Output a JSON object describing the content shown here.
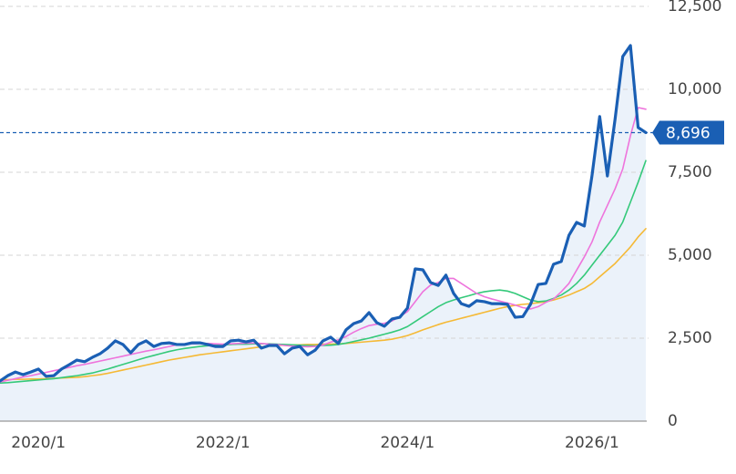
{
  "chart_data": {
    "type": "line",
    "categories": [
      null,
      null,
      null,
      null,
      null,
      "2020/1",
      null,
      null,
      null,
      null,
      null,
      null,
      null,
      null,
      null,
      null,
      null,
      null,
      null,
      null,
      null,
      null,
      null,
      null,
      null,
      null,
      null,
      null,
      null,
      "2022/1",
      null,
      null,
      null,
      null,
      null,
      null,
      null,
      null,
      null,
      null,
      null,
      null,
      null,
      null,
      null,
      null,
      null,
      null,
      null,
      null,
      null,
      null,
      null,
      "2024/1",
      null,
      null,
      null,
      null,
      null,
      null,
      null,
      null,
      null,
      null,
      null,
      null,
      null,
      null,
      null,
      null,
      null,
      null,
      null,
      null,
      null,
      null,
      null,
      "2026/1",
      null,
      null,
      null,
      null,
      null,
      null,
      null
    ],
    "series": [
      {
        "color": "#f5b935",
        "width": 1.6,
        "values": [
          1250,
          1250,
          1260,
          1260,
          1270,
          1270,
          1280,
          1290,
          1300,
          1310,
          1320,
          1340,
          1370,
          1400,
          1440,
          1490,
          1540,
          1590,
          1640,
          1690,
          1740,
          1790,
          1840,
          1880,
          1920,
          1960,
          2000,
          2030,
          2060,
          2090,
          2120,
          2150,
          2180,
          2210,
          2240,
          2260,
          2280,
          2290,
          2300,
          2300,
          2310,
          2310,
          2320,
          2320,
          2330,
          2340,
          2360,
          2380,
          2400,
          2420,
          2440,
          2470,
          2520,
          2580,
          2660,
          2750,
          2830,
          2910,
          2980,
          3040,
          3100,
          3160,
          3220,
          3280,
          3340,
          3400,
          3450,
          3490,
          3520,
          3540,
          3570,
          3600,
          3650,
          3720,
          3800,
          3900,
          4000,
          4150,
          4350,
          4550,
          4750,
          5000,
          5250,
          5550,
          5800
        ]
      },
      {
        "color": "#34c97a",
        "width": 1.6,
        "values": [
          1150,
          1160,
          1180,
          1200,
          1220,
          1240,
          1260,
          1280,
          1310,
          1340,
          1370,
          1410,
          1450,
          1510,
          1570,
          1640,
          1710,
          1780,
          1850,
          1920,
          1980,
          2040,
          2100,
          2150,
          2190,
          2220,
          2250,
          2270,
          2290,
          2300,
          2310,
          2320,
          2320,
          2330,
          2330,
          2330,
          2320,
          2310,
          2300,
          2290,
          2280,
          2270,
          2280,
          2290,
          2310,
          2350,
          2400,
          2450,
          2500,
          2560,
          2620,
          2680,
          2750,
          2850,
          3000,
          3150,
          3300,
          3450,
          3570,
          3650,
          3720,
          3780,
          3850,
          3900,
          3930,
          3950,
          3920,
          3850,
          3750,
          3650,
          3600,
          3620,
          3700,
          3800,
          3950,
          4150,
          4400,
          4700,
          5000,
          5300,
          5600,
          6000,
          6600,
          7200,
          7850
        ]
      },
      {
        "color": "#ee74dc",
        "width": 1.6,
        "values": [
          1180,
          1230,
          1280,
          1330,
          1370,
          1420,
          1470,
          1520,
          1570,
          1620,
          1670,
          1710,
          1760,
          1810,
          1860,
          1910,
          1960,
          2010,
          2060,
          2110,
          2150,
          2200,
          2250,
          2300,
          2320,
          2330,
          2340,
          2340,
          2330,
          2320,
          2330,
          2340,
          2350,
          2350,
          2340,
          2320,
          2310,
          2280,
          2260,
          2250,
          2240,
          2250,
          2290,
          2380,
          2450,
          2550,
          2680,
          2790,
          2880,
          2920,
          2950,
          3020,
          3150,
          3300,
          3600,
          3900,
          4100,
          4180,
          4300,
          4300,
          4150,
          4000,
          3850,
          3750,
          3680,
          3620,
          3560,
          3500,
          3420,
          3380,
          3450,
          3580,
          3680,
          3900,
          4150,
          4550,
          4950,
          5400,
          6000,
          6500,
          7000,
          7600,
          8600,
          9450,
          9400
        ]
      },
      {
        "color": "#1a5fb4",
        "width": 3.2,
        "area": "#ebf2fa",
        "values": [
          1210,
          1370,
          1480,
          1400,
          1480,
          1570,
          1350,
          1370,
          1570,
          1700,
          1840,
          1790,
          1920,
          2030,
          2200,
          2420,
          2310,
          2060,
          2310,
          2420,
          2250,
          2340,
          2360,
          2310,
          2310,
          2360,
          2360,
          2310,
          2250,
          2250,
          2420,
          2440,
          2390,
          2440,
          2200,
          2280,
          2280,
          2030,
          2200,
          2250,
          2000,
          2140,
          2420,
          2530,
          2340,
          2750,
          2940,
          3020,
          3270,
          2970,
          2860,
          3080,
          3130,
          3410,
          4590,
          4560,
          4180,
          4090,
          4400,
          3850,
          3540,
          3460,
          3630,
          3600,
          3540,
          3540,
          3520,
          3130,
          3150,
          3520,
          4120,
          4150,
          4730,
          4810,
          5600,
          5990,
          5880,
          7400,
          9180,
          7390,
          9100,
          10990,
          11320,
          8850,
          8696
        ]
      }
    ],
    "ylim": [
      0,
      12500
    ],
    "yticks": [
      0,
      {
        "value": 2500,
        "label": "2,500"
      },
      {
        "value": 5000,
        "label": "5,000"
      },
      {
        "value": 7500,
        "label": "7,500"
      },
      {
        "value": 10000,
        "label": "10,000"
      },
      {
        "value": 12500,
        "label": "12,500"
      }
    ],
    "grid": true,
    "reference_line": {
      "value": 8696,
      "label": "8,696",
      "color": "#1a5fb4"
    }
  }
}
